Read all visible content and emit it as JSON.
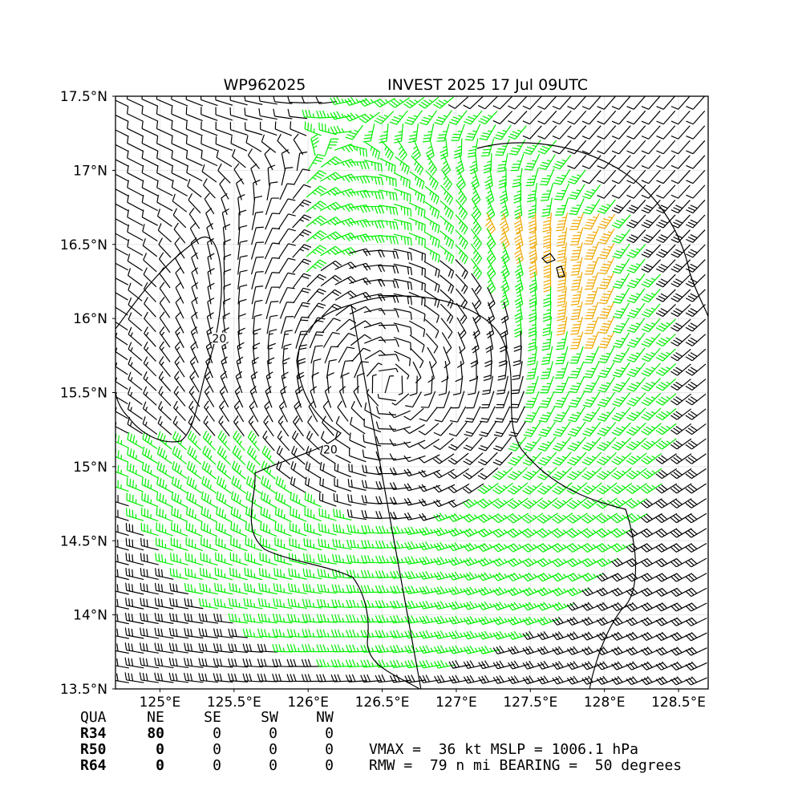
{
  "title": {
    "storm_id": "WP962025",
    "storm_info": "INVEST 2025 17 Jul 09UTC"
  },
  "map": {
    "lon_range": [
      124.7,
      128.7
    ],
    "lat_range": [
      13.5,
      17.5
    ],
    "lon_ticks": [
      {
        "value": 125.0,
        "label": "125°E"
      },
      {
        "value": 125.5,
        "label": "125.5°E"
      },
      {
        "value": 126.0,
        "label": "126°E"
      },
      {
        "value": 126.5,
        "label": "126.5°E"
      },
      {
        "value": 127.0,
        "label": "127°E"
      },
      {
        "value": 127.5,
        "label": "127.5°E"
      },
      {
        "value": 128.0,
        "label": "128°E"
      },
      {
        "value": 128.5,
        "label": "128.5°E"
      }
    ],
    "lat_ticks": [
      {
        "value": 17.5,
        "label": "17.5°N"
      },
      {
        "value": 17.0,
        "label": "17°N"
      },
      {
        "value": 16.5,
        "label": "16.5°N"
      },
      {
        "value": 16.0,
        "label": "16°N"
      },
      {
        "value": 15.5,
        "label": "15.5°N"
      },
      {
        "value": 15.0,
        "label": "15°N"
      },
      {
        "value": 14.5,
        "label": "14.5°N"
      },
      {
        "value": 14.0,
        "label": "14°N"
      },
      {
        "value": 13.5,
        "label": "13.5°N"
      }
    ],
    "storm_center": {
      "lon": 126.55,
      "lat": 15.55
    },
    "contour_labels": [
      {
        "text": "20",
        "lon": 125.4,
        "lat": 15.85
      },
      {
        "text": "20",
        "lon": 126.15,
        "lat": 15.1
      }
    ],
    "barb_colors": {
      "weak": "#000000",
      "gale": "#00ee00",
      "storm": "#f0a800"
    }
  },
  "wind_table": {
    "headers": [
      "QUA",
      "NE",
      "SE",
      "SW",
      "NW"
    ],
    "rows": [
      {
        "label": "R34",
        "values": [
          "80",
          "0",
          "0",
          "0"
        ]
      },
      {
        "label": "R50",
        "values": [
          "0",
          "0",
          "0",
          "0"
        ]
      },
      {
        "label": "R64",
        "values": [
          "0",
          "0",
          "0",
          "0"
        ]
      }
    ]
  },
  "summary": {
    "line1": "VMAX =  36 kt MSLP = 1006.1 hPa",
    "line2": "RMW =  79 n mi BEARING =  50 degrees"
  }
}
